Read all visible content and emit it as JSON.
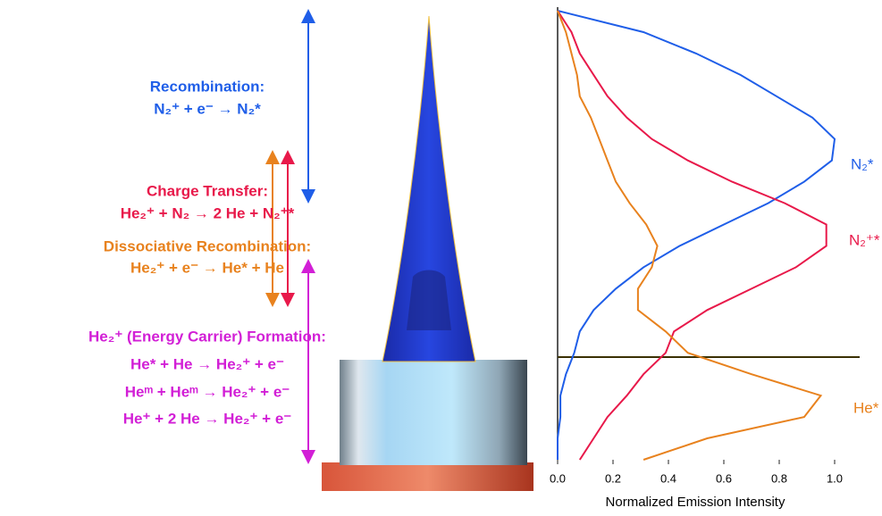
{
  "annotations": [
    {
      "color": "#1f5ee8",
      "lines": [
        "Recombination:",
        "N₂⁺ + e⁻ → N₂*"
      ]
    },
    {
      "color": "#e8194a",
      "lines": [
        "Charge Transfer:",
        "He₂⁺ + N₂ → 2 He + N₂⁺*"
      ]
    },
    {
      "color": "#e8821e",
      "lines": [
        "Dissociative Recombination:",
        "He₂⁺ + e⁻ → He* + He"
      ]
    },
    {
      "color": "#d21fd6",
      "lines": [
        "He₂⁺ (Energy Carrier) Formation:",
        "He* + He → He₂⁺ + e⁻",
        "Heᵐ + Heᵐ → He₂⁺ + e⁻",
        "He⁺ + 2 He → He₂⁺ + e⁻"
      ]
    }
  ],
  "chart_data": {
    "type": "line",
    "orientation": "horizontal",
    "xlabel": "Normalized Emission Intensity",
    "xlim": [
      0,
      1
    ],
    "xticks": [
      {
        "value": 0,
        "label": "0.0"
      },
      0.2,
      0.4,
      0.6,
      0.8,
      {
        "value": 1,
        "label": "1.0"
      }
    ],
    "categories": [
      null,
      null,
      null,
      null,
      null,
      null,
      null,
      null,
      null,
      null,
      null,
      null,
      null,
      null,
      null,
      null,
      null,
      null,
      null,
      null,
      null,
      null
    ],
    "series": [
      {
        "name": "N₂*",
        "color": "#1f5ee8",
        "values": [
          0,
          0,
          0.01,
          0.01,
          0.03,
          0.06,
          0.08,
          0.13,
          0.21,
          0.31,
          0.44,
          0.6,
          0.76,
          0.89,
          0.99,
          1.0,
          0.92,
          0.79,
          0.66,
          0.5,
          0.31,
          0
        ]
      },
      {
        "name": "N₂⁺*",
        "color": "#e8194a",
        "values": [
          0.08,
          0.13,
          0.18,
          0.25,
          0.31,
          0.39,
          0.42,
          0.54,
          0.7,
          0.86,
          0.97,
          0.97,
          0.82,
          0.63,
          0.47,
          0.34,
          0.25,
          0.18,
          0.13,
          0.08,
          0.05,
          0
        ]
      },
      {
        "name": "He*",
        "color": "#e8821e",
        "values": [
          0.31,
          0.54,
          0.89,
          0.95,
          0.7,
          0.47,
          0.39,
          0.29,
          0.29,
          0.34,
          0.36,
          0.32,
          0.26,
          0.21,
          0.18,
          0.15,
          0.12,
          0.08,
          0.07,
          0.05,
          0.03,
          0
        ]
      }
    ]
  }
}
